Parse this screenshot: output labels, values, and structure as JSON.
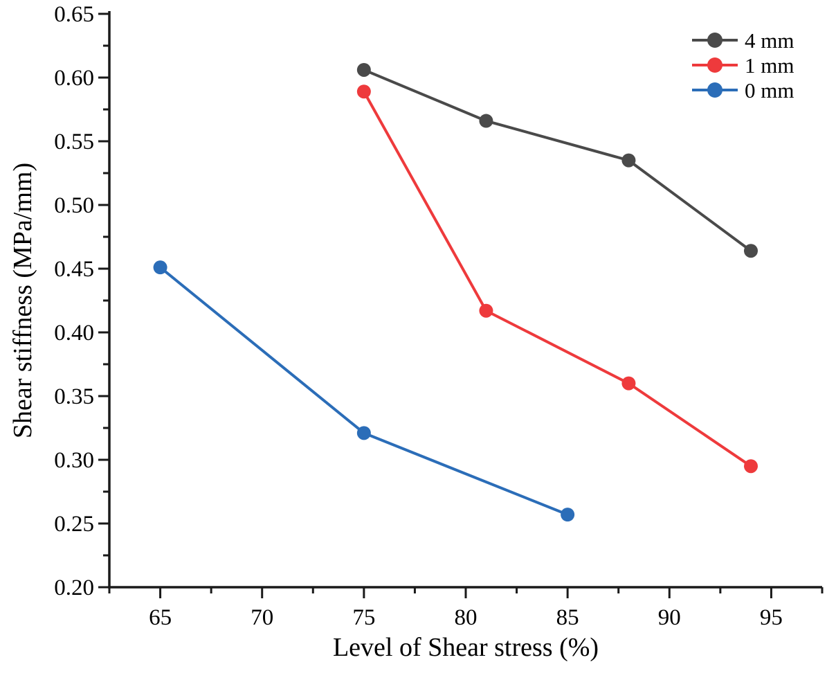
{
  "figure": {
    "background": "#ffffff"
  },
  "chart_data": {
    "type": "line",
    "title": "",
    "xlabel": "Level of Shear stress (%)",
    "ylabel": "Shear stiffness (MPa/mm)",
    "xlim": [
      62.5,
      97.5
    ],
    "ylim": [
      0.2,
      0.65
    ],
    "grid": false,
    "legend_position": "top-right",
    "axis_color": "#1a1a1a",
    "text_color": "#000000",
    "x_ticks": {
      "values": [
        65,
        70,
        75,
        80,
        85,
        90,
        95
      ],
      "labels": [
        "65",
        "70",
        "75",
        "80",
        "85",
        "90",
        "95"
      ],
      "minor": [
        62.5,
        67.5,
        72.5,
        77.5,
        82.5,
        87.5,
        92.5,
        97.5
      ]
    },
    "y_ticks": {
      "values": [
        0.2,
        0.25,
        0.3,
        0.35,
        0.4,
        0.45,
        0.5,
        0.55,
        0.6,
        0.65
      ],
      "labels": [
        "0.20",
        "0.25",
        "0.30",
        "0.35",
        "0.40",
        "0.45",
        "0.50",
        "0.55",
        "0.60",
        "0.65"
      ],
      "minor": [
        0.225,
        0.275,
        0.325,
        0.375,
        0.425,
        0.475,
        0.525,
        0.575,
        0.625
      ]
    },
    "series": [
      {
        "name": "4 mm",
        "color": "#4a4a4a",
        "x": [
          75,
          81,
          88,
          94
        ],
        "y": [
          0.606,
          0.566,
          0.535,
          0.464
        ]
      },
      {
        "name": "1 mm",
        "color": "#ee3a3c",
        "x": [
          75,
          81,
          88,
          94
        ],
        "y": [
          0.589,
          0.417,
          0.36,
          0.295
        ]
      },
      {
        "name": "0 mm",
        "color": "#2b6db8",
        "x": [
          65,
          75,
          85
        ],
        "y": [
          0.451,
          0.321,
          0.257
        ]
      }
    ]
  }
}
